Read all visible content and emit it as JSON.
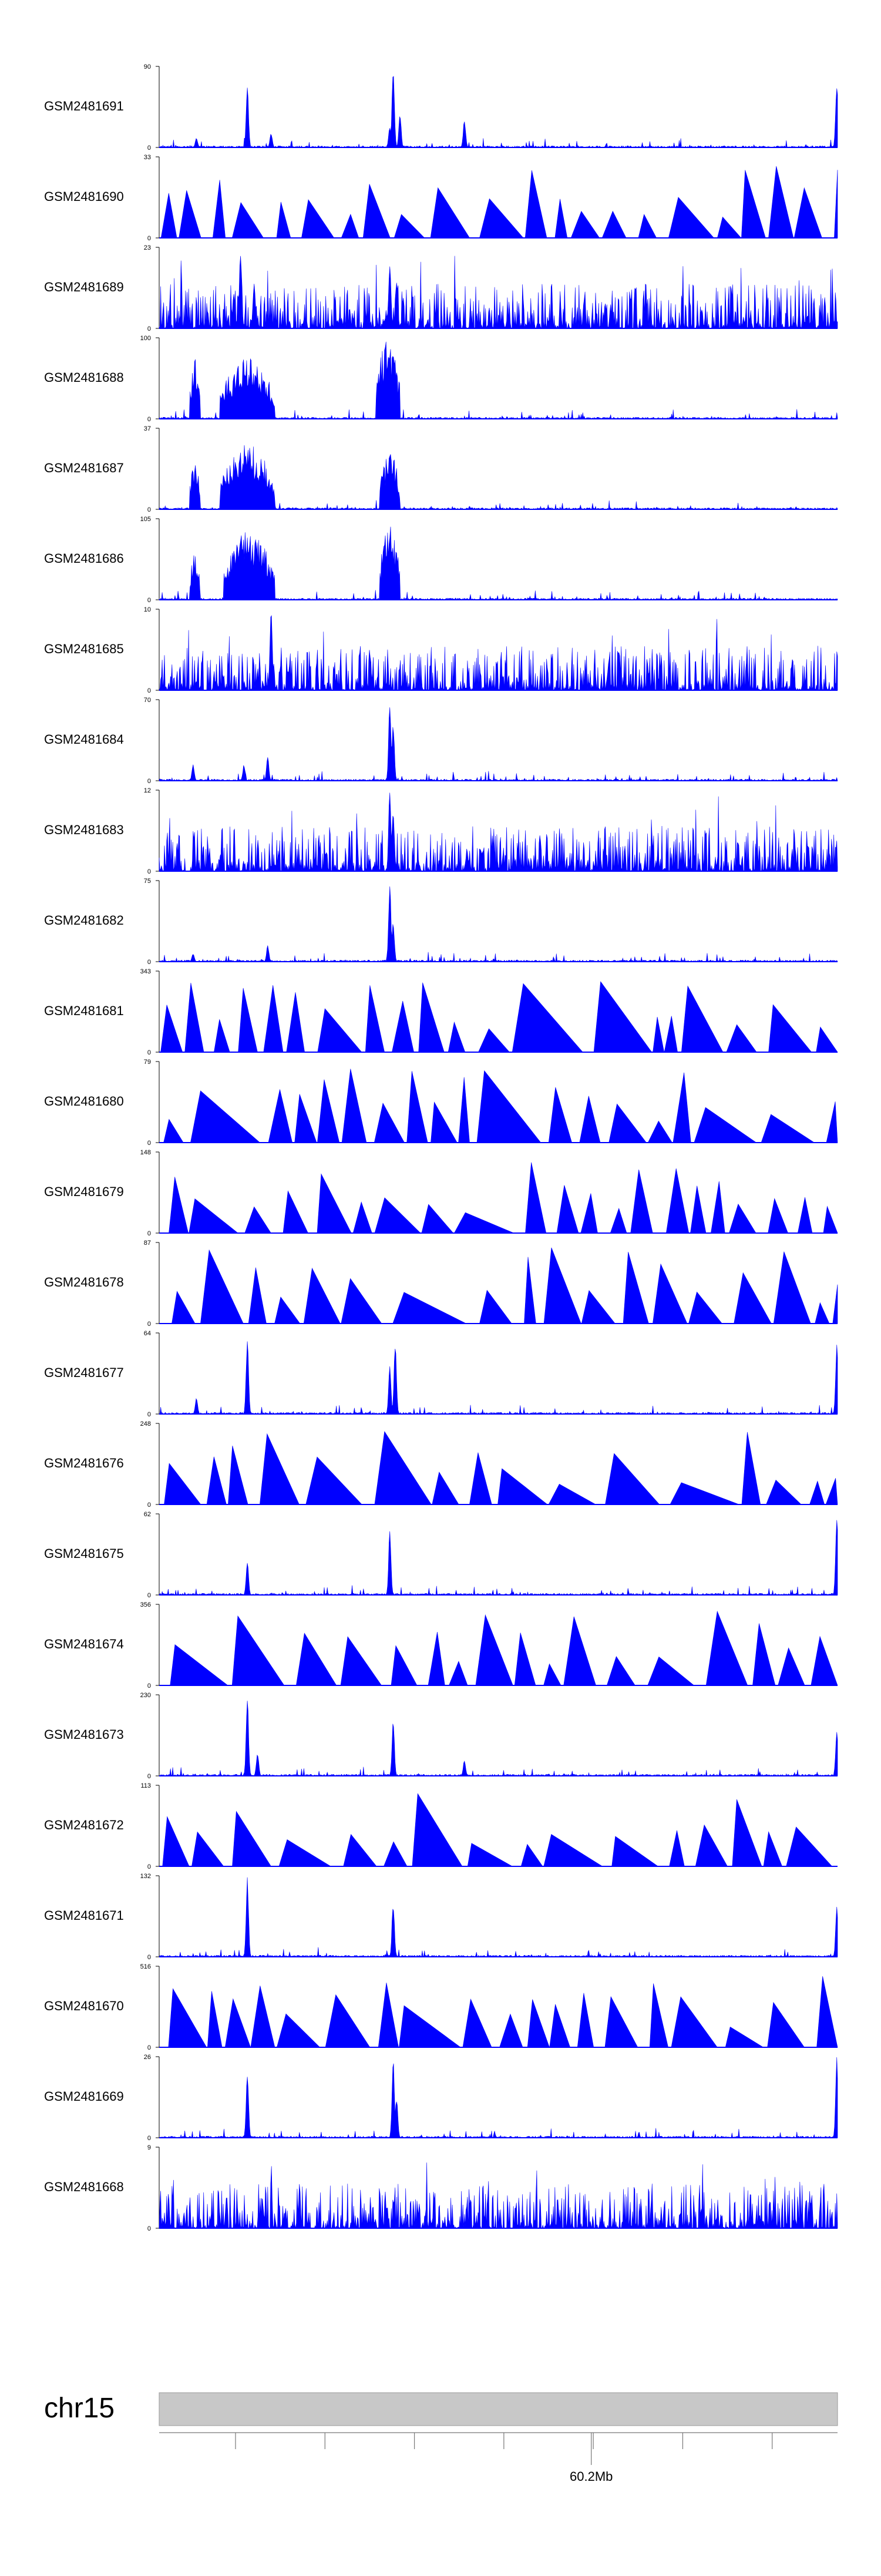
{
  "chart_data": {
    "type": "area",
    "title": "",
    "fill_color": "#0000FF",
    "axis_color": "#000000",
    "ideogram_color": "#C8C8C8",
    "chromosome": "chr15",
    "genome_axis": {
      "label": "60.2Mb",
      "minor_tick_count": 7
    },
    "tracks": [
      {
        "name": "GSM2481691",
        "ymin": 0,
        "ymax": 90,
        "pattern": "peaks",
        "seed": 11,
        "peaks": [
          [
            0.055,
            0.12
          ],
          [
            0.13,
            0.75
          ],
          [
            0.165,
            0.18
          ],
          [
            0.34,
            0.25
          ],
          [
            0.345,
            1.0
          ],
          [
            0.355,
            0.4
          ],
          [
            0.45,
            0.35
          ],
          [
            0.999,
            0.85
          ]
        ]
      },
      {
        "name": "GSM2481690",
        "ymin": 0,
        "ymax": 33,
        "pattern": "sparse",
        "seed": 12
      },
      {
        "name": "GSM2481689",
        "ymin": 0,
        "ymax": 23,
        "pattern": "dense",
        "seed": 13,
        "peaks": [
          [
            0.11,
            0.45
          ],
          [
            0.12,
            1.0
          ],
          [
            0.14,
            0.6
          ],
          [
            0.34,
            0.85
          ],
          [
            0.35,
            0.6
          ]
        ]
      },
      {
        "name": "GSM2481688",
        "ymin": 0,
        "ymax": 100,
        "pattern": "broad",
        "seed": 14,
        "regions": [
          [
            0.045,
            0.06,
            0.8
          ],
          [
            0.09,
            0.17,
            0.75
          ],
          [
            0.32,
            0.355,
            1.0
          ]
        ]
      },
      {
        "name": "GSM2481687",
        "ymin": 0,
        "ymax": 37,
        "pattern": "broad",
        "seed": 15,
        "regions": [
          [
            0.045,
            0.06,
            0.6
          ],
          [
            0.09,
            0.17,
            0.8
          ],
          [
            0.325,
            0.355,
            0.7
          ]
        ]
      },
      {
        "name": "GSM2481686",
        "ymin": 0,
        "ymax": 105,
        "pattern": "broad",
        "seed": 16,
        "regions": [
          [
            0.045,
            0.06,
            0.6
          ],
          [
            0.095,
            0.17,
            0.85
          ],
          [
            0.325,
            0.355,
            0.95
          ]
        ]
      },
      {
        "name": "GSM2481685",
        "ymin": 0,
        "ymax": 10,
        "pattern": "dense",
        "seed": 17,
        "peaks": [
          [
            0.165,
            1.0
          ]
        ]
      },
      {
        "name": "GSM2481684",
        "ymin": 0,
        "ymax": 70,
        "pattern": "peaks",
        "seed": 18,
        "peaks": [
          [
            0.05,
            0.2
          ],
          [
            0.125,
            0.2
          ],
          [
            0.16,
            0.3
          ],
          [
            0.34,
            0.95
          ],
          [
            0.345,
            0.7
          ]
        ]
      },
      {
        "name": "GSM2481683",
        "ymin": 0,
        "ymax": 12,
        "pattern": "dense",
        "seed": 19,
        "peaks": [
          [
            0.34,
            1.0
          ],
          [
            0.345,
            0.8
          ]
        ]
      },
      {
        "name": "GSM2481682",
        "ymin": 0,
        "ymax": 75,
        "pattern": "peaks",
        "seed": 20,
        "peaks": [
          [
            0.05,
            0.1
          ],
          [
            0.16,
            0.2
          ],
          [
            0.34,
            0.95
          ],
          [
            0.345,
            0.5
          ]
        ]
      },
      {
        "name": "GSM2481681",
        "ymin": 0,
        "ymax": 343,
        "pattern": "sparse",
        "seed": 21
      },
      {
        "name": "GSM2481680",
        "ymin": 0,
        "ymax": 79,
        "pattern": "sparse",
        "seed": 22
      },
      {
        "name": "GSM2481679",
        "ymin": 0,
        "ymax": 148,
        "pattern": "sparse",
        "seed": 23
      },
      {
        "name": "GSM2481678",
        "ymin": 0,
        "ymax": 87,
        "pattern": "sparse",
        "seed": 24
      },
      {
        "name": "GSM2481677",
        "ymin": 0,
        "ymax": 64,
        "pattern": "peaks",
        "seed": 25,
        "peaks": [
          [
            0.055,
            0.2
          ],
          [
            0.13,
            0.98
          ],
          [
            0.34,
            0.6
          ],
          [
            0.348,
            0.9
          ],
          [
            0.999,
            0.9
          ]
        ]
      },
      {
        "name": "GSM2481676",
        "ymin": 0,
        "ymax": 248,
        "pattern": "sparse",
        "seed": 26
      },
      {
        "name": "GSM2481675",
        "ymin": 0,
        "ymax": 62,
        "pattern": "peaks",
        "seed": 27,
        "peaks": [
          [
            0.13,
            0.45
          ],
          [
            0.34,
            0.8
          ],
          [
            0.999,
            1.0
          ]
        ]
      },
      {
        "name": "GSM2481674",
        "ymin": 0,
        "ymax": 356,
        "pattern": "sparse",
        "seed": 28
      },
      {
        "name": "GSM2481673",
        "ymin": 0,
        "ymax": 230,
        "pattern": "peaks",
        "seed": 29,
        "peaks": [
          [
            0.13,
            1.0
          ],
          [
            0.145,
            0.3
          ],
          [
            0.345,
            0.7
          ],
          [
            0.45,
            0.2
          ],
          [
            0.999,
            0.6
          ]
        ]
      },
      {
        "name": "GSM2481672",
        "ymin": 0,
        "ymax": 113,
        "pattern": "sparse",
        "seed": 30
      },
      {
        "name": "GSM2481671",
        "ymin": 0,
        "ymax": 132,
        "pattern": "peaks",
        "seed": 31,
        "peaks": [
          [
            0.13,
            1.0
          ],
          [
            0.345,
            0.7
          ],
          [
            0.999,
            0.65
          ]
        ]
      },
      {
        "name": "GSM2481670",
        "ymin": 0,
        "ymax": 516,
        "pattern": "sparse",
        "seed": 32
      },
      {
        "name": "GSM2481669",
        "ymin": 0,
        "ymax": 26,
        "pattern": "peaks",
        "seed": 33,
        "peaks": [
          [
            0.13,
            0.85
          ],
          [
            0.345,
            1.0
          ],
          [
            0.35,
            0.5
          ],
          [
            0.999,
            1.0
          ]
        ]
      },
      {
        "name": "GSM2481668",
        "ymin": 0,
        "ymax": 9,
        "pattern": "dense",
        "seed": 34
      }
    ]
  }
}
